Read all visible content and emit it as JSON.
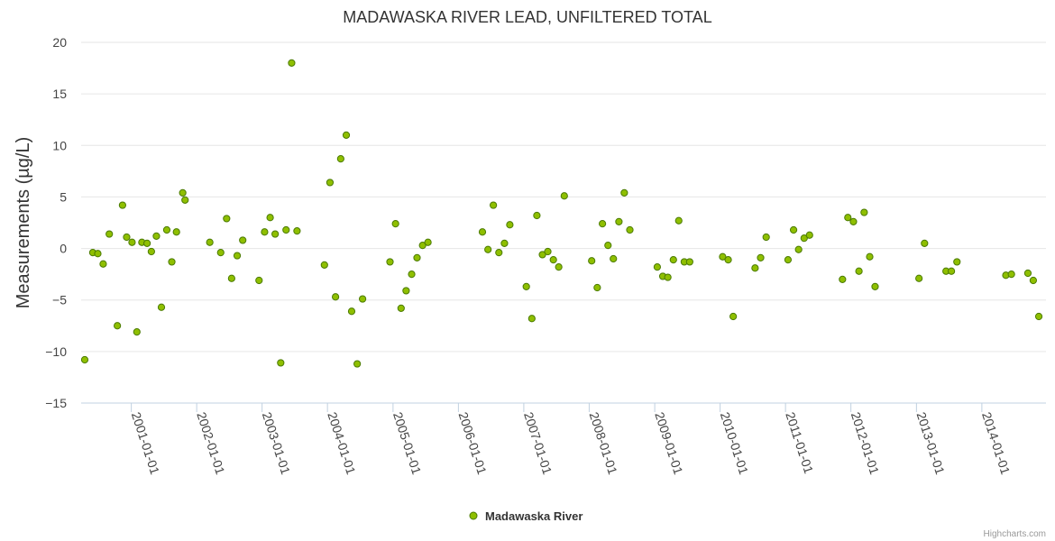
{
  "chart_data": {
    "type": "scatter",
    "title": "MADAWASKA RIVER LEAD, UNFILTERED TOTAL",
    "ylabel": "Measurements (µg/L)",
    "xlabel": "",
    "ylim": [
      -15,
      20
    ],
    "yticks": [
      -15,
      -10,
      -5,
      0,
      5,
      10,
      15,
      20
    ],
    "xlim": [
      "2000-03-27",
      "2014-12-25"
    ],
    "xticks": [
      "2001-01-01",
      "2002-01-01",
      "2003-01-01",
      "2004-01-01",
      "2005-01-01",
      "2006-01-01",
      "2007-01-01",
      "2008-01-01",
      "2009-01-01",
      "2010-01-01",
      "2011-01-01",
      "2012-01-01",
      "2013-01-01",
      "2014-01-01"
    ],
    "grid": true,
    "legend": "bottom-center",
    "credits": "Highcharts.com",
    "colors": {
      "marker_fill": "#8fbf00",
      "marker_stroke": "#4a7a00",
      "grid": "#e6e6e6",
      "axis": "#c0d0e0"
    },
    "series": [
      {
        "name": "Madawaska River",
        "points": [
          [
            "2000-04-16",
            -10.8
          ],
          [
            "2000-05-31",
            -0.4
          ],
          [
            "2000-06-28",
            -0.5
          ],
          [
            "2000-07-28",
            -1.5
          ],
          [
            "2000-08-31",
            1.4
          ],
          [
            "2000-10-15",
            -7.5
          ],
          [
            "2000-11-13",
            4.2
          ],
          [
            "2000-12-06",
            1.1
          ],
          [
            "2001-01-05",
            0.6
          ],
          [
            "2001-02-01",
            -8.1
          ],
          [
            "2001-03-01",
            0.6
          ],
          [
            "2001-03-30",
            0.5
          ],
          [
            "2001-04-23",
            -0.3
          ],
          [
            "2001-05-21",
            1.2
          ],
          [
            "2001-06-18",
            -5.7
          ],
          [
            "2001-07-18",
            1.8
          ],
          [
            "2001-08-15",
            -1.3
          ],
          [
            "2001-09-10",
            1.6
          ],
          [
            "2001-10-15",
            5.4
          ],
          [
            "2001-10-28",
            4.7
          ],
          [
            "2002-03-15",
            0.6
          ],
          [
            "2002-05-15",
            -0.4
          ],
          [
            "2002-06-17",
            2.9
          ],
          [
            "2002-07-15",
            -2.9
          ],
          [
            "2002-08-15",
            -0.7
          ],
          [
            "2002-09-15",
            0.8
          ],
          [
            "2002-12-15",
            -3.1
          ],
          [
            "2003-01-15",
            1.6
          ],
          [
            "2003-02-15",
            3.0
          ],
          [
            "2003-03-15",
            1.4
          ],
          [
            "2003-04-15",
            -11.1
          ],
          [
            "2003-05-15",
            1.8
          ],
          [
            "2003-06-15",
            18.0
          ],
          [
            "2003-07-15",
            1.7
          ],
          [
            "2003-12-15",
            -1.6
          ],
          [
            "2004-01-15",
            6.4
          ],
          [
            "2004-02-15",
            -4.7
          ],
          [
            "2004-03-15",
            8.7
          ],
          [
            "2004-04-15",
            11.0
          ],
          [
            "2004-05-15",
            -6.1
          ],
          [
            "2004-06-15",
            -11.2
          ],
          [
            "2004-07-15",
            -4.9
          ],
          [
            "2004-12-15",
            -1.3
          ],
          [
            "2005-01-15",
            2.4
          ],
          [
            "2005-02-15",
            -5.8
          ],
          [
            "2005-03-15",
            -4.1
          ],
          [
            "2005-04-15",
            -2.5
          ],
          [
            "2005-05-15",
            -0.9
          ],
          [
            "2005-06-15",
            0.3
          ],
          [
            "2005-07-15",
            0.6
          ],
          [
            "2006-05-15",
            1.6
          ],
          [
            "2006-06-15",
            -0.1
          ],
          [
            "2006-07-15",
            4.2
          ],
          [
            "2006-08-15",
            -0.4
          ],
          [
            "2006-09-15",
            0.5
          ],
          [
            "2006-10-15",
            2.3
          ],
          [
            "2007-01-15",
            -3.7
          ],
          [
            "2007-02-15",
            -6.8
          ],
          [
            "2007-03-15",
            3.2
          ],
          [
            "2007-04-15",
            -0.6
          ],
          [
            "2007-05-15",
            -0.3
          ],
          [
            "2007-06-15",
            -1.1
          ],
          [
            "2007-07-15",
            -1.8
          ],
          [
            "2007-08-15",
            5.1
          ],
          [
            "2008-01-15",
            -1.2
          ],
          [
            "2008-02-15",
            -3.8
          ],
          [
            "2008-03-15",
            2.4
          ],
          [
            "2008-04-15",
            0.3
          ],
          [
            "2008-05-15",
            -1.0
          ],
          [
            "2008-06-15",
            2.6
          ],
          [
            "2008-07-15",
            5.4
          ],
          [
            "2008-08-15",
            1.8
          ],
          [
            "2009-01-15",
            -1.8
          ],
          [
            "2009-02-15",
            -2.7
          ],
          [
            "2009-03-15",
            -2.8
          ],
          [
            "2009-04-15",
            -1.1
          ],
          [
            "2009-05-15",
            2.7
          ],
          [
            "2009-06-15",
            -1.3
          ],
          [
            "2009-07-15",
            -1.3
          ],
          [
            "2010-01-15",
            -0.8
          ],
          [
            "2010-02-15",
            -1.1
          ],
          [
            "2010-03-15",
            -6.6
          ],
          [
            "2010-07-15",
            -1.9
          ],
          [
            "2010-08-15",
            -0.9
          ],
          [
            "2010-09-15",
            1.1
          ],
          [
            "2011-01-15",
            -1.1
          ],
          [
            "2011-02-15",
            1.8
          ],
          [
            "2011-03-15",
            -0.1
          ],
          [
            "2011-04-15",
            1.0
          ],
          [
            "2011-05-15",
            1.3
          ],
          [
            "2011-11-15",
            -3.0
          ],
          [
            "2011-12-15",
            3.0
          ],
          [
            "2012-01-15",
            2.6
          ],
          [
            "2012-02-15",
            -2.2
          ],
          [
            "2012-03-15",
            3.5
          ],
          [
            "2012-04-15",
            -0.8
          ],
          [
            "2012-05-15",
            -3.7
          ],
          [
            "2013-01-15",
            -2.9
          ],
          [
            "2013-02-15",
            0.5
          ],
          [
            "2013-06-15",
            -2.2
          ],
          [
            "2013-07-15",
            -2.2
          ],
          [
            "2013-08-15",
            -1.3
          ],
          [
            "2014-05-15",
            -2.6
          ],
          [
            "2014-06-15",
            -2.5
          ],
          [
            "2014-09-15",
            -2.4
          ],
          [
            "2014-10-15",
            -3.1
          ],
          [
            "2014-11-15",
            -6.6
          ]
        ]
      }
    ]
  }
}
